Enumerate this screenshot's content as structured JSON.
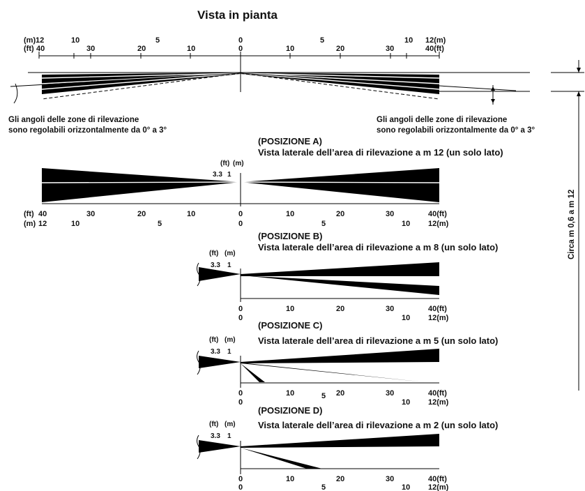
{
  "title": "Vista in pianta",
  "plan": {
    "unit_m_left": "(m)",
    "unit_ft_left": "(ft)",
    "m_left": [
      "12",
      "10",
      "5"
    ],
    "m_zero": "0",
    "m_right": [
      "5",
      "10"
    ],
    "m_right_end": "12(m)",
    "ft_left": [
      "40",
      "30",
      "20",
      "10"
    ],
    "ft_zero": "0",
    "ft_right": [
      "10",
      "20",
      "30"
    ],
    "ft_right_end": "40(ft)",
    "note_left_1": "Gli angoli delle zone di rilevazione",
    "note_left_2": "sono regolabili orizzontalmente da 0° a 3°",
    "note_right_1": "Gli angoli delle zone di rilevazione",
    "note_right_2": "sono regolabili orizzontalmente da 0° a 3°"
  },
  "height_label": "Circa m 0,6 a m 12",
  "side_views": [
    {
      "position": "(POSIZIONE A)",
      "caption": "Vista laterale dell’area di rilevazione a m 12 (un solo lato)",
      "unit_ft": "(ft)",
      "unit_m": "(m)",
      "height_ft": "3.3",
      "height_m": "1",
      "left_ft_unit": "(ft)",
      "left_m_unit": "(m)",
      "left_ft_vals": [
        "40",
        "30",
        "20",
        "10"
      ],
      "left_m_vals": [
        "12",
        "10",
        "5"
      ],
      "zero_ft": "0",
      "zero_m": "0",
      "right_ft_vals": [
        "10",
        "20",
        "30"
      ],
      "right_m_vals": [
        "5",
        "10"
      ],
      "right_ft_end": "40(ft)",
      "right_m_end": "12(m)"
    },
    {
      "position": "(POSIZIONE B)",
      "caption": "Vista laterale dell’area di rilevazione a m 8 (un solo lato)",
      "unit_ft": "(ft)",
      "unit_m": "(m)",
      "height_ft": "3.3",
      "height_m": "1",
      "zero_ft": "0",
      "zero_m": "0",
      "right_ft_vals": [
        "10",
        "20",
        "30"
      ],
      "right_m_vals": [
        "10"
      ],
      "right_ft_end": "40(ft)",
      "right_m_end": "12(m)"
    },
    {
      "position": "(POSIZIONE C)",
      "caption": "Vista laterale dell’area di rilevazione a m 5 (un solo lato)",
      "unit_ft": "(ft)",
      "unit_m": "(m)",
      "height_ft": "3.3",
      "height_m": "1",
      "zero_ft": "0",
      "zero_m": "0",
      "right_ft_vals": [
        "10",
        "20",
        "30"
      ],
      "right_m_vals": [
        "5",
        "10"
      ],
      "right_ft_end": "40(ft)",
      "right_m_end": "12(m)"
    },
    {
      "position": "(POSIZIONE D)",
      "caption": "Vista laterale dell’area di rilevazione a m 2 (un solo lato)",
      "unit_ft": "(ft)",
      "unit_m": "(m)",
      "height_ft": "3.3",
      "height_m": "1",
      "zero_ft": "0",
      "zero_m": "0",
      "right_ft_vals": [
        "10",
        "20",
        "30"
      ],
      "right_m_vals": [
        "5",
        "10"
      ],
      "right_ft_end": "40(ft)",
      "right_m_end": "12(m)"
    }
  ]
}
